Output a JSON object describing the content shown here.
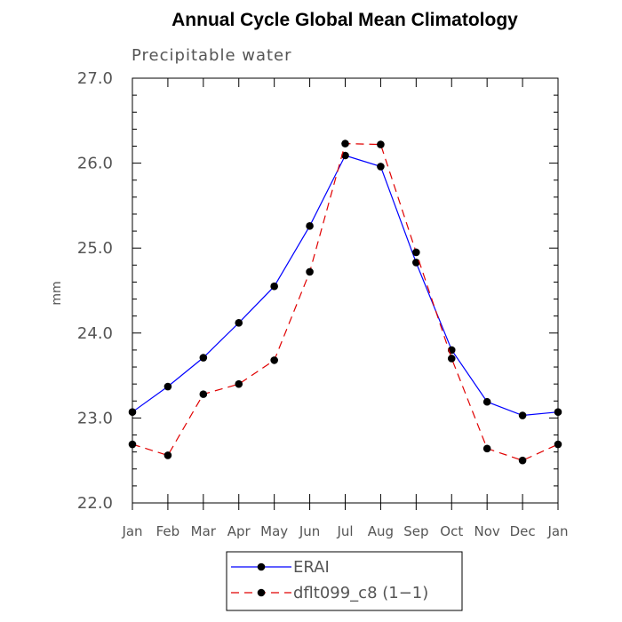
{
  "chart_data": {
    "type": "line",
    "title": "Annual Cycle Global Mean Climatology",
    "subtitle": "Precipitable water",
    "xlabel": "",
    "ylabel": "mm",
    "categories": [
      "Jan",
      "Feb",
      "Mar",
      "Apr",
      "May",
      "Jun",
      "Jul",
      "Aug",
      "Sep",
      "Oct",
      "Nov",
      "Dec",
      "Jan"
    ],
    "ylim": [
      22.0,
      27.0
    ],
    "yticks": [
      "22.0",
      "23.0",
      "24.0",
      "25.0",
      "26.0",
      "27.0"
    ],
    "grid": false,
    "legend_position": "bottom-center",
    "series": [
      {
        "name": "ERAI",
        "color": "#0000ff",
        "dash": "solid",
        "marker": "filled-circle",
        "values": [
          23.07,
          23.37,
          23.71,
          24.12,
          24.55,
          25.26,
          26.09,
          25.96,
          24.83,
          23.8,
          23.19,
          23.03,
          23.07
        ]
      },
      {
        "name": "dflt099_c8 (1−1)",
        "color": "#e00000",
        "dash": "dashed",
        "marker": "filled-circle",
        "values": [
          22.69,
          22.56,
          23.28,
          23.4,
          23.68,
          24.72,
          26.23,
          26.22,
          24.95,
          23.7,
          22.64,
          22.5,
          22.69
        ]
      }
    ]
  }
}
